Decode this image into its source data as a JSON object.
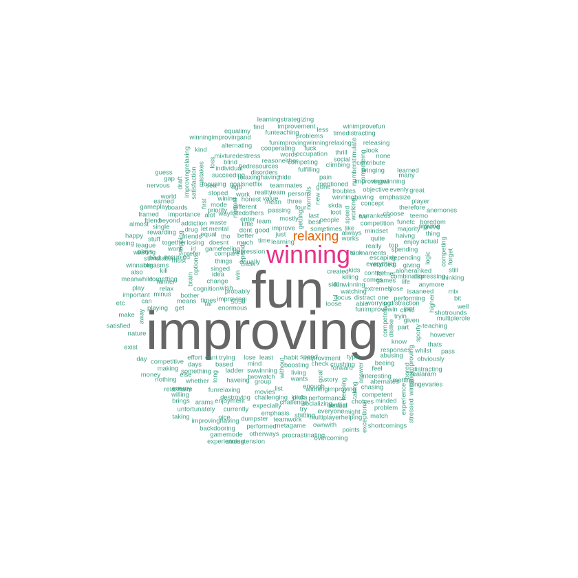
{
  "colors": {
    "background": "#ffffff",
    "primary": "#666666",
    "secondary": "#e6308a",
    "tertiary": "#e1640c",
    "minor": "#3a9e83"
  },
  "words": [
    {
      "text": "improving",
      "tier": "primary"
    },
    {
      "text": "fun",
      "tier": "primary"
    },
    {
      "text": "winning",
      "tier": "secondary"
    },
    {
      "text": "relaxing",
      "tier": "tertiary"
    },
    {
      "text": "learningstrategizing"
    },
    {
      "text": "improvement"
    },
    {
      "text": "find"
    },
    {
      "text": "funteaching"
    },
    {
      "text": "less"
    },
    {
      "text": "winimprovefun"
    },
    {
      "text": "timedistracting"
    },
    {
      "text": "equalimy"
    },
    {
      "text": "problems"
    },
    {
      "text": "winningimprovingand"
    },
    {
      "text": "funimprovingwinningrelaxing"
    },
    {
      "text": "releasing"
    },
    {
      "text": "alternating"
    },
    {
      "text": "cooperating"
    },
    {
      "text": "fuck"
    },
    {
      "text": "thrill"
    },
    {
      "text": "look"
    },
    {
      "text": "kind"
    },
    {
      "text": "mixturedestress"
    },
    {
      "text": "words"
    },
    {
      "text": "occupation"
    },
    {
      "text": "none"
    },
    {
      "text": "blind"
    },
    {
      "text": "reasoneither"
    },
    {
      "text": "competing"
    },
    {
      "text": "social"
    },
    {
      "text": "contribute"
    },
    {
      "text": "tiedresources"
    },
    {
      "text": "climbing"
    },
    {
      "text": "fulfilling"
    },
    {
      "text": "bringing"
    },
    {
      "text": "learned"
    },
    {
      "text": "individual"
    },
    {
      "text": "disorders"
    },
    {
      "text": "hide"
    },
    {
      "text": "guess"
    },
    {
      "text": "succeeding"
    },
    {
      "text": "relaxinghaving"
    },
    {
      "text": "pain"
    },
    {
      "text": "many"
    },
    {
      "text": "improvingwinning"
    },
    {
      "text": "gap"
    },
    {
      "text": "focusing"
    },
    {
      "text": "goals"
    },
    {
      "text": "netflix"
    },
    {
      "text": "mentioned"
    },
    {
      "text": "regret"
    },
    {
      "text": "nervous"
    },
    {
      "text": "sea"
    },
    {
      "text": "ago"
    },
    {
      "text": "teammates"
    },
    {
      "text": "gone"
    },
    {
      "text": "objective"
    },
    {
      "text": "evenly"
    },
    {
      "text": "great"
    },
    {
      "text": "stoped"
    },
    {
      "text": "work"
    },
    {
      "text": "reality"
    },
    {
      "text": "team"
    },
    {
      "text": "person"
    },
    {
      "text": "troubles"
    },
    {
      "text": "world"
    },
    {
      "text": "wining"
    },
    {
      "text": "honest"
    },
    {
      "text": "value"
    },
    {
      "text": "mean"
    },
    {
      "text": "three"
    },
    {
      "text": "winninghaving"
    },
    {
      "text": "emphasize"
    },
    {
      "text": "earned"
    },
    {
      "text": "mode"
    },
    {
      "text": "different"
    },
    {
      "text": "concept"
    },
    {
      "text": "player"
    },
    {
      "text": "gameplay"
    },
    {
      "text": "boards"
    },
    {
      "text": "priority"
    },
    {
      "text": "passing"
    },
    {
      "text": "four"
    },
    {
      "text": "skda"
    },
    {
      "text": "therefore"
    },
    {
      "text": "anemones"
    },
    {
      "text": "framed"
    },
    {
      "text": "importance"
    },
    {
      "text": "alot"
    },
    {
      "text": "way"
    },
    {
      "text": "listed"
    },
    {
      "text": "others"
    },
    {
      "text": "loot"
    },
    {
      "text": "ear"
    },
    {
      "text": "rankeds"
    },
    {
      "text": "choose"
    },
    {
      "text": "teemo"
    },
    {
      "text": "friend"
    },
    {
      "text": "beyond"
    },
    {
      "text": "enter"
    },
    {
      "text": "mostly"
    },
    {
      "text": "last"
    },
    {
      "text": "ive"
    },
    {
      "text": "funetc"
    },
    {
      "text": "boredom"
    },
    {
      "text": "almost"
    },
    {
      "text": "addiction"
    },
    {
      "text": "waste"
    },
    {
      "text": "little"
    },
    {
      "text": "learn"
    },
    {
      "text": "best"
    },
    {
      "text": "people"
    },
    {
      "text": "competition"
    },
    {
      "text": "majority"
    },
    {
      "text": "prove"
    },
    {
      "text": "single"
    },
    {
      "text": "drug"
    },
    {
      "text": "let"
    },
    {
      "text": "mental"
    },
    {
      "text": "dont"
    },
    {
      "text": "good"
    },
    {
      "text": "improve"
    },
    {
      "text": "sometimes"
    },
    {
      "text": "like"
    },
    {
      "text": "mindset"
    },
    {
      "text": "arguing"
    },
    {
      "text": "rewarding"
    },
    {
      "text": "equal"
    },
    {
      "text": "tho"
    },
    {
      "text": "better"
    },
    {
      "text": "just"
    },
    {
      "text": "always"
    },
    {
      "text": "haivng"
    },
    {
      "text": "thing"
    },
    {
      "text": "happy"
    },
    {
      "text": "stuff"
    },
    {
      "text": "friends"
    },
    {
      "text": "time"
    },
    {
      "text": "learning"
    },
    {
      "text": "works"
    },
    {
      "text": "quite"
    },
    {
      "text": "enjoy"
    },
    {
      "text": "actual"
    },
    {
      "text": "seeing"
    },
    {
      "text": "league"
    },
    {
      "text": "together"
    },
    {
      "text": "losing"
    },
    {
      "text": "doesnt"
    },
    {
      "text": "much"
    },
    {
      "text": "really"
    },
    {
      "text": "top"
    },
    {
      "text": "plays"
    },
    {
      "text": "wont"
    },
    {
      "text": "irl"
    },
    {
      "text": "game"
    },
    {
      "text": "feeling"
    },
    {
      "text": "depression"
    },
    {
      "text": "tournaments"
    },
    {
      "text": "spending"
    },
    {
      "text": "wasting"
    },
    {
      "text": "prefer"
    },
    {
      "text": "compare"
    },
    {
      "text": "sink"
    },
    {
      "text": "depending"
    },
    {
      "text": "bad"
    },
    {
      "text": "occupied"
    },
    {
      "text": "things"
    },
    {
      "text": "equally"
    },
    {
      "text": "escaping"
    },
    {
      "text": "stimulation"
    },
    {
      "text": "must"
    },
    {
      "text": "ask"
    },
    {
      "text": "everything"
    },
    {
      "text": "giving"
    },
    {
      "text": "winnable"
    },
    {
      "text": "orgasms"
    },
    {
      "text": "singed"
    },
    {
      "text": "retarded"
    },
    {
      "text": "aloneranked"
    },
    {
      "text": "still"
    },
    {
      "text": "also"
    },
    {
      "text": "kill"
    },
    {
      "text": "idea"
    },
    {
      "text": "created"
    },
    {
      "text": "kids"
    },
    {
      "text": "content"
    },
    {
      "text": "former"
    },
    {
      "text": "combination"
    },
    {
      "text": "depressing"
    },
    {
      "text": "meanwhile"
    },
    {
      "text": "forgetting"
    },
    {
      "text": "killing"
    },
    {
      "text": "thinking"
    },
    {
      "text": "funner"
    },
    {
      "text": "change"
    },
    {
      "text": "comes"
    },
    {
      "text": "games"
    },
    {
      "text": "life"
    },
    {
      "text": "play"
    },
    {
      "text": "relax"
    },
    {
      "text": "cognition"
    },
    {
      "text": "wish"
    },
    {
      "text": "skill"
    },
    {
      "text": "funwinning"
    },
    {
      "text": "anymore"
    },
    {
      "text": "extremely"
    },
    {
      "text": "close"
    },
    {
      "text": "isaaneed"
    },
    {
      "text": "mix"
    },
    {
      "text": "important"
    },
    {
      "text": "minus"
    },
    {
      "text": "bother"
    },
    {
      "text": "probably"
    },
    {
      "text": "watching"
    },
    {
      "text": "performing"
    },
    {
      "text": "bit"
    },
    {
      "text": "etc"
    },
    {
      "text": "can"
    },
    {
      "text": "means"
    },
    {
      "text": "times"
    },
    {
      "text": "improvingi"
    },
    {
      "text": "focus"
    },
    {
      "text": "distract"
    },
    {
      "text": "one"
    },
    {
      "text": "well"
    },
    {
      "text": "playing"
    },
    {
      "text": "get"
    },
    {
      "text": "far"
    },
    {
      "text": "5050"
    },
    {
      "text": "loose"
    },
    {
      "text": "able"
    },
    {
      "text": "worrying"
    },
    {
      "text": "distraction"
    },
    {
      "text": "isnt"
    },
    {
      "text": "shotrounds"
    },
    {
      "text": "make"
    },
    {
      "text": "enormous"
    },
    {
      "text": "funimprovewin"
    },
    {
      "text": "clinic"
    },
    {
      "text": "multiplerole"
    },
    {
      "text": "satisfied"
    },
    {
      "text": "tryin"
    },
    {
      "text": "given"
    },
    {
      "text": "teaching"
    },
    {
      "text": "nature"
    },
    {
      "text": "part"
    },
    {
      "text": "however"
    },
    {
      "text": "exist"
    },
    {
      "text": "know"
    },
    {
      "text": "thats"
    },
    {
      "text": "responses"
    },
    {
      "text": "whilst"
    },
    {
      "text": "pass"
    },
    {
      "text": "day"
    },
    {
      "text": "effort"
    },
    {
      "text": "cant"
    },
    {
      "text": "trying"
    },
    {
      "text": "lose"
    },
    {
      "text": "least"
    },
    {
      "text": "habit"
    },
    {
      "text": "spend"
    },
    {
      "text": "improviment"
    },
    {
      "text": "type"
    },
    {
      "text": "abusing"
    },
    {
      "text": "obviously"
    },
    {
      "text": "competitive"
    },
    {
      "text": "days"
    },
    {
      "text": "based"
    },
    {
      "text": "mind"
    },
    {
      "text": "boosting"
    },
    {
      "text": "check"
    },
    {
      "text": "crushing"
    },
    {
      "text": "beeing"
    },
    {
      "text": "distracting"
    },
    {
      "text": "making"
    },
    {
      "text": "something"
    },
    {
      "text": "ladder"
    },
    {
      "text": "swwinning"
    },
    {
      "text": "living"
    },
    {
      "text": "forward"
    },
    {
      "text": "feel"
    },
    {
      "text": "realaram"
    },
    {
      "text": "money"
    },
    {
      "text": "else"
    },
    {
      "text": "twowatch"
    },
    {
      "text": "wants"
    },
    {
      "text": "story"
    },
    {
      "text": "interesting"
    },
    {
      "text": "metting"
    },
    {
      "text": "nothing"
    },
    {
      "text": "whether"
    },
    {
      "text": "haveing"
    },
    {
      "text": "group"
    },
    {
      "text": "alternates"
    },
    {
      "text": "bingevaries"
    },
    {
      "text": "enemy"
    },
    {
      "text": "list"
    },
    {
      "text": "enough"
    },
    {
      "text": "winningimproving"
    },
    {
      "text": "chasing"
    },
    {
      "text": "relaxhave"
    },
    {
      "text": "funrelaxing"
    },
    {
      "text": "movies"
    },
    {
      "text": "pick"
    },
    {
      "text": "performance"
    },
    {
      "text": "competent"
    },
    {
      "text": "willing"
    },
    {
      "text": "destroying"
    },
    {
      "text": "challenging"
    },
    {
      "text": "kinda"
    },
    {
      "text": "sexual"
    },
    {
      "text": "choices"
    },
    {
      "text": "brings"
    },
    {
      "text": "arams"
    },
    {
      "text": "enjoyment"
    },
    {
      "text": "expecially"
    },
    {
      "text": "challenge"
    },
    {
      "text": "socializing"
    },
    {
      "text": "conflict"
    },
    {
      "text": "might"
    },
    {
      "text": "minded"
    },
    {
      "text": "unfortunately"
    },
    {
      "text": "currently"
    },
    {
      "text": "emphasis"
    },
    {
      "text": "try"
    },
    {
      "text": "everyone"
    },
    {
      "text": "problem"
    },
    {
      "text": "taking"
    },
    {
      "text": "nice"
    },
    {
      "text": "dumpster"
    },
    {
      "text": "teamwork"
    },
    {
      "text": "shitting"
    },
    {
      "text": "multiplayerhelping"
    },
    {
      "text": "match"
    },
    {
      "text": "improvinghaving"
    },
    {
      "text": "performed"
    },
    {
      "text": "metagame"
    },
    {
      "text": "ownwith"
    },
    {
      "text": "shortcomings"
    },
    {
      "text": "backdooring"
    },
    {
      "text": "points"
    },
    {
      "text": "gamemode"
    },
    {
      "text": "otherways"
    },
    {
      "text": "procrastinating"
    },
    {
      "text": "overcoming"
    },
    {
      "text": "experiencing"
    },
    {
      "text": "stresstension"
    },
    {
      "text": "improvingrelaxing",
      "rot": true
    },
    {
      "text": "draft",
      "rot": true
    },
    {
      "text": "satisfaction",
      "rot": true
    },
    {
      "text": "mistakes",
      "rot": true
    },
    {
      "text": "loss",
      "rot": true
    },
    {
      "text": "numberstimulate",
      "rot": true
    },
    {
      "text": "competeing",
      "rot": true
    },
    {
      "text": "first",
      "rot": true
    },
    {
      "text": "normal",
      "rot": true
    },
    {
      "text": "depends",
      "rot": true
    },
    {
      "text": "getting",
      "rot": true
    },
    {
      "text": "normals",
      "rot": true
    },
    {
      "text": "new",
      "rot": true
    },
    {
      "text": "speed",
      "rot": true
    },
    {
      "text": "working",
      "rot": true
    },
    {
      "text": "stopping",
      "rot": true
    },
    {
      "text": "options",
      "rot": true
    },
    {
      "text": "brain",
      "rot": true
    },
    {
      "text": "win",
      "rot": true
    },
    {
      "text": "away",
      "rot": true
    },
    {
      "text": "logic",
      "rot": true
    },
    {
      "text": "competing",
      "rot": true
    },
    {
      "text": "forget",
      "rot": true
    },
    {
      "text": "higher",
      "rot": true
    },
    {
      "text": "lol",
      "rot": true
    },
    {
      "text": "competetive",
      "rot": true
    },
    {
      "text": "dislike",
      "rot": true
    },
    {
      "text": "sporty",
      "rot": true
    },
    {
      "text": "without",
      "rot": true
    },
    {
      "text": "goal",
      "rot": true
    },
    {
      "text": "answer",
      "rot": true
    },
    {
      "text": "keeping",
      "rot": true
    },
    {
      "text": "taking",
      "rot": true
    },
    {
      "text": "exceptional",
      "rot": true
    },
    {
      "text": "experience",
      "rot": true
    },
    {
      "text": "stressed",
      "rot": true
    },
    {
      "text": "winningimproving",
      "rot": true
    },
    {
      "text": "bored",
      "rot": true
    },
    {
      "text": "long",
      "rot": true
    }
  ]
}
